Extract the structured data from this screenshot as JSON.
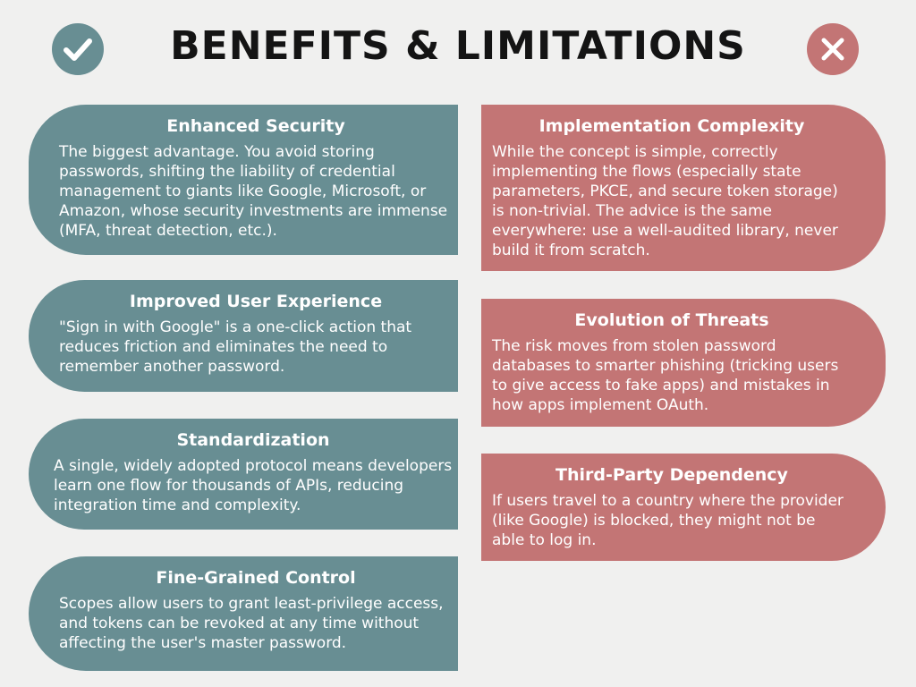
{
  "title": "BENEFITS & LIMITATIONS",
  "icons": {
    "left": "check-circle-icon",
    "right": "cross-circle-icon"
  },
  "colors": {
    "benefit": "#688e93",
    "limitation": "#c37575",
    "title": "#141414",
    "background": "#f0f0ef"
  },
  "benefits": [
    {
      "heading": "Enhanced Security",
      "text": "The biggest advantage. You avoid storing passwords, shifting the liability of credential management to giants like Google, Microsoft, or Amazon, whose security investments are immense (MFA, threat detection, etc.)."
    },
    {
      "heading": "Improved User Experience",
      "text": "\"Sign in with Google\" is a one-click action that reduces friction and eliminates the need to remember another password."
    },
    {
      "heading": "Standardization",
      "text": "A single, widely adopted protocol means developers learn one flow for thousands of APIs, reducing integration time and complexity."
    },
    {
      "heading": "Fine-Grained Control",
      "text": "Scopes allow users to grant least-privilege access, and tokens can be revoked at any time without affecting the user's master password."
    }
  ],
  "limitations": [
    {
      "heading": "Implementation Complexity",
      "text": "While the concept is simple, correctly implementing the flows (especially state parameters, PKCE, and secure token storage) is non-trivial. The advice is the same everywhere: use a well-audited library, never build it from scratch."
    },
    {
      "heading": "Evolution of Threats",
      "text": "The risk moves from stolen password databases to smarter phishing (tricking users to give access to fake apps) and mistakes in how apps implement OAuth."
    },
    {
      "heading": "Third-Party Dependency",
      "text": "If users travel to a country where the provider (like Google) is blocked, they might not be able to log in."
    }
  ]
}
